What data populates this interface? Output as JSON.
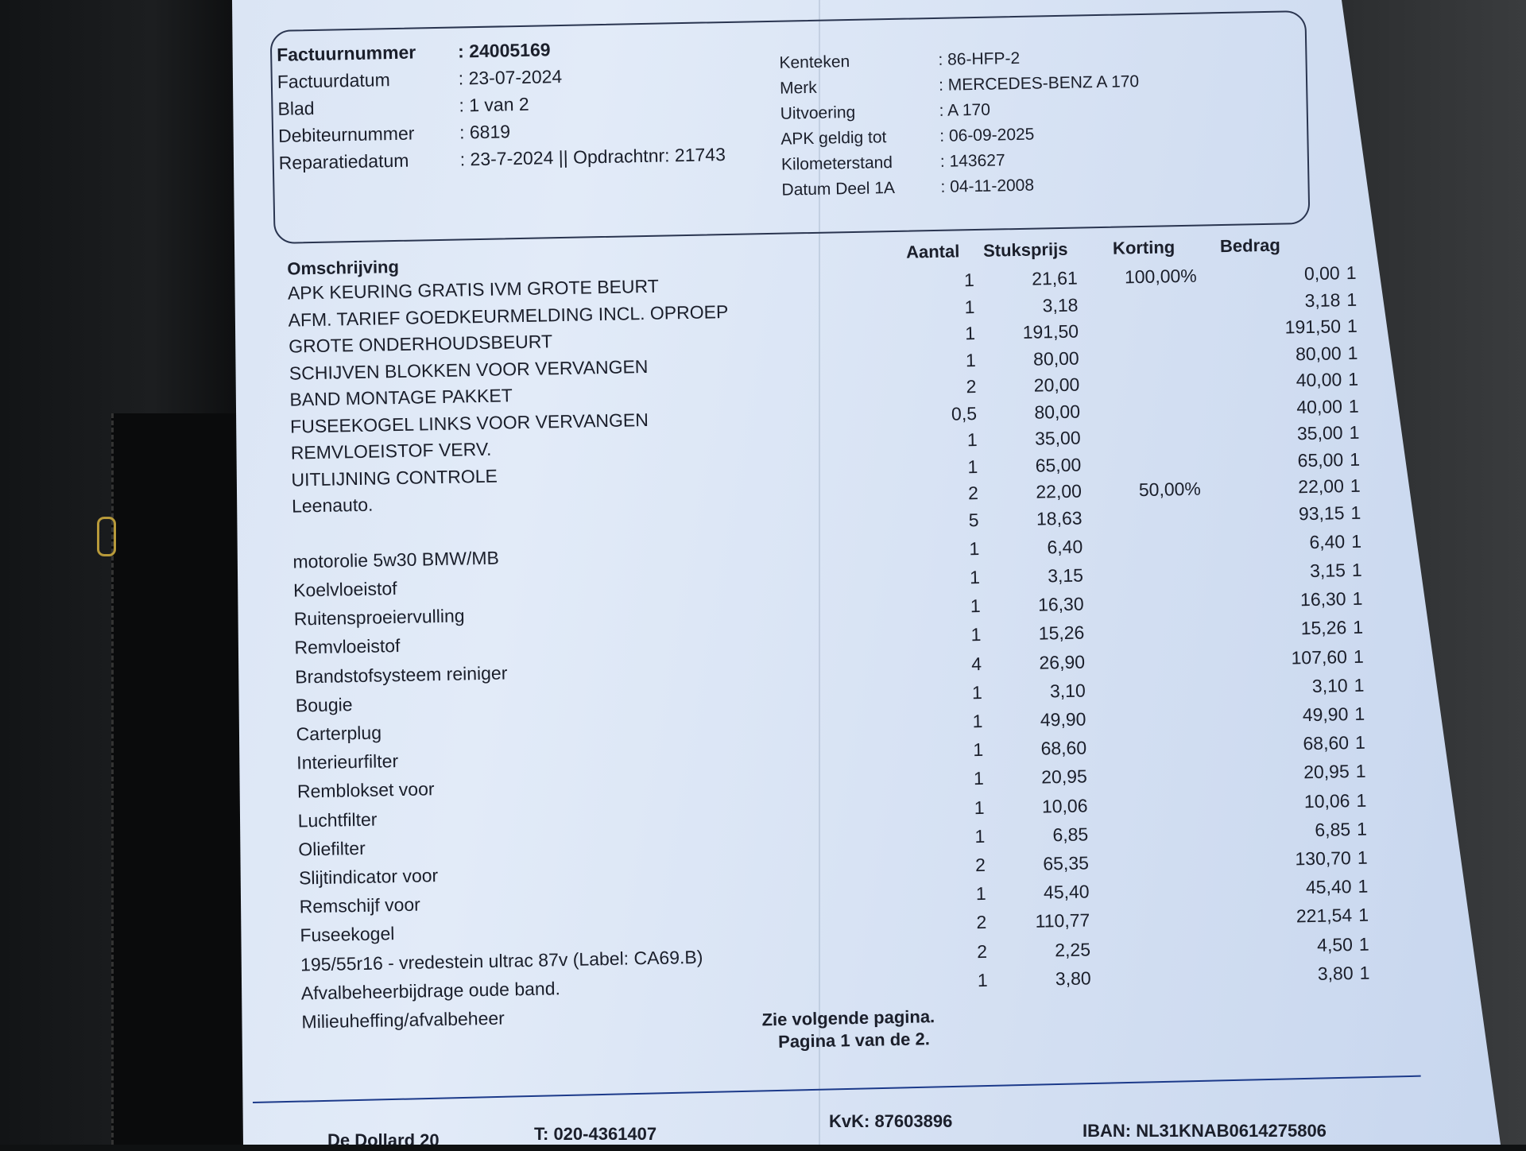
{
  "header": {
    "left": [
      {
        "label": "Factuurnummer",
        "value": ": 24005169"
      },
      {
        "label": "Factuurdatum",
        "value": ": 23-07-2024"
      },
      {
        "label": "Blad",
        "value": ": 1 van 2"
      },
      {
        "label": "Debiteurnummer",
        "value": ": 6819"
      },
      {
        "label": "Reparatiedatum",
        "value": ": 23-7-2024 || Opdrachtnr: 21743"
      }
    ],
    "right": [
      {
        "label": "Kenteken",
        "value": ": 86-HFP-2"
      },
      {
        "label": "Merk",
        "value": ": MERCEDES-BENZ A 170"
      },
      {
        "label": "Uitvoering",
        "value": ": A 170"
      },
      {
        "label": "APK geldig tot",
        "value": ": 06-09-2025"
      },
      {
        "label": "Kilometerstand",
        "value": ": 143627"
      },
      {
        "label": "Datum Deel 1A",
        "value": ": 04-11-2008"
      }
    ]
  },
  "table": {
    "columns": {
      "description": "Omschrijving",
      "qty": "Aantal",
      "unit_price": "Stuksprijs",
      "discount": "Korting",
      "amount": "Bedrag"
    },
    "rows": [
      {
        "description": "APK KEURING GRATIS IVM GROTE BEURT",
        "qty": "1",
        "unit_price": "21,61",
        "discount": "100,00%",
        "amount": "0,00",
        "code": "1"
      },
      {
        "description": "AFM. TARIEF GOEDKEURMELDING INCL. OPROEP",
        "qty": "1",
        "unit_price": "3,18",
        "discount": "",
        "amount": "3,18",
        "code": "1"
      },
      {
        "description": "GROTE ONDERHOUDSBEURT",
        "qty": "1",
        "unit_price": "191,50",
        "discount": "",
        "amount": "191,50",
        "code": "1"
      },
      {
        "description": "SCHIJVEN BLOKKEN VOOR VERVANGEN",
        "qty": "1",
        "unit_price": "80,00",
        "discount": "",
        "amount": "80,00",
        "code": "1"
      },
      {
        "description": "BAND MONTAGE PAKKET",
        "qty": "2",
        "unit_price": "20,00",
        "discount": "",
        "amount": "40,00",
        "code": "1"
      },
      {
        "description": "FUSEEKOGEL LINKS VOOR VERVANGEN",
        "qty": "0,5",
        "unit_price": "80,00",
        "discount": "",
        "amount": "40,00",
        "code": "1"
      },
      {
        "description": "REMVLOEISTOF VERV.",
        "qty": "1",
        "unit_price": "35,00",
        "discount": "",
        "amount": "35,00",
        "code": "1"
      },
      {
        "description": "UITLIJNING CONTROLE",
        "qty": "1",
        "unit_price": "65,00",
        "discount": "",
        "amount": "65,00",
        "code": "1"
      },
      {
        "description": "Leenauto.",
        "qty": "2",
        "unit_price": "22,00",
        "discount": "50,00%",
        "amount": "22,00",
        "code": "1"
      },
      {
        "description": "",
        "qty": "5",
        "unit_price": "18,63",
        "discount": "",
        "amount": "93,15",
        "code": "1"
      },
      {
        "description": "motorolie 5w30 BMW/MB",
        "qty": "1",
        "unit_price": "6,40",
        "discount": "",
        "amount": "6,40",
        "code": "1"
      },
      {
        "description": "Koelvloeistof",
        "qty": "1",
        "unit_price": "3,15",
        "discount": "",
        "amount": "3,15",
        "code": "1"
      },
      {
        "description": "Ruitensproeiervulling",
        "qty": "1",
        "unit_price": "16,30",
        "discount": "",
        "amount": "16,30",
        "code": "1"
      },
      {
        "description": "Remvloeistof",
        "qty": "1",
        "unit_price": "15,26",
        "discount": "",
        "amount": "15,26",
        "code": "1"
      },
      {
        "description": "Brandstofsysteem reiniger",
        "qty": "4",
        "unit_price": "26,90",
        "discount": "",
        "amount": "107,60",
        "code": "1"
      },
      {
        "description": "Bougie",
        "qty": "1",
        "unit_price": "3,10",
        "discount": "",
        "amount": "3,10",
        "code": "1"
      },
      {
        "description": "Carterplug",
        "qty": "1",
        "unit_price": "49,90",
        "discount": "",
        "amount": "49,90",
        "code": "1"
      },
      {
        "description": "Interieurfilter",
        "qty": "1",
        "unit_price": "68,60",
        "discount": "",
        "amount": "68,60",
        "code": "1"
      },
      {
        "description": "Remblokset voor",
        "qty": "1",
        "unit_price": "20,95",
        "discount": "",
        "amount": "20,95",
        "code": "1"
      },
      {
        "description": "Luchtfilter",
        "qty": "1",
        "unit_price": "10,06",
        "discount": "",
        "amount": "10,06",
        "code": "1"
      },
      {
        "description": "Oliefilter",
        "qty": "1",
        "unit_price": "6,85",
        "discount": "",
        "amount": "6,85",
        "code": "1"
      },
      {
        "description": "Slijtindicator voor",
        "qty": "2",
        "unit_price": "65,35",
        "discount": "",
        "amount": "130,70",
        "code": "1"
      },
      {
        "description": "Remschijf voor",
        "qty": "1",
        "unit_price": "45,40",
        "discount": "",
        "amount": "45,40",
        "code": "1"
      },
      {
        "description": "Fuseekogel",
        "qty": "2",
        "unit_price": "110,77",
        "discount": "",
        "amount": "221,54",
        "code": "1"
      },
      {
        "description": "195/55r16 - vredestein ultrac 87v (Label: CA69.B)",
        "qty": "2",
        "unit_price": "2,25",
        "discount": "",
        "amount": "4,50",
        "code": "1"
      },
      {
        "description": "Afvalbeheerbijdrage oude band.",
        "qty": "1",
        "unit_price": "3,80",
        "discount": "",
        "amount": "3,80",
        "code": "1"
      },
      {
        "description": "Milieuheffing/afvalbeheer",
        "qty": "",
        "unit_price": "",
        "discount": "",
        "amount": "",
        "code": ""
      }
    ]
  },
  "footer_note": {
    "line1": "Zie volgende pagina.",
    "line2": "Pagina 1 van de 2."
  },
  "company": {
    "address": "De Dollard 20",
    "phone": "T: 020-4361407",
    "kvk": "KvK: 87603896",
    "iban": "IBAN: NL31KNAB0614275806"
  }
}
